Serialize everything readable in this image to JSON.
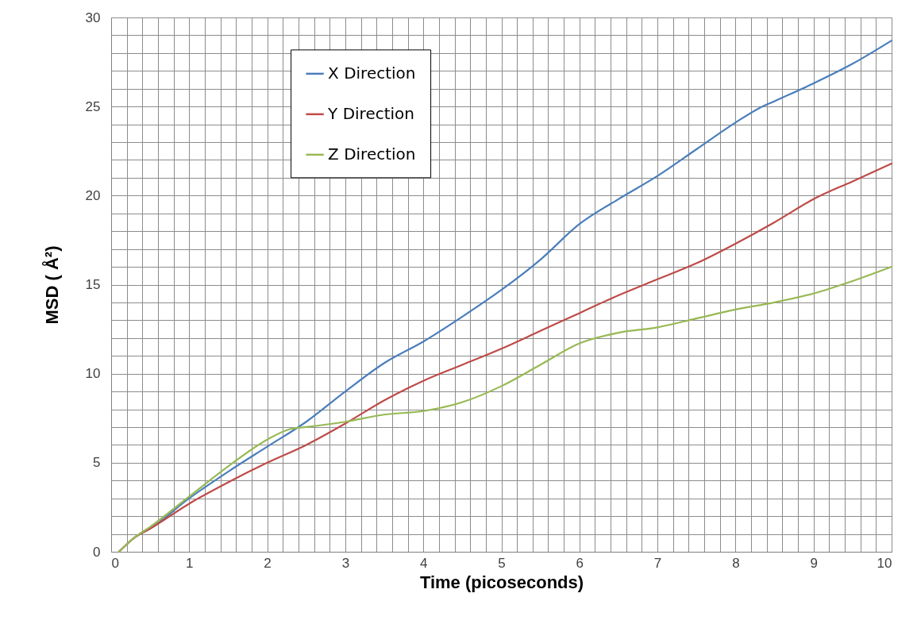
{
  "chart_data": {
    "type": "line",
    "xlabel": "Time (picoseconds)",
    "ylabel": "MSD ( Å²)",
    "xlim": [
      0,
      10
    ],
    "ylim": [
      0,
      30
    ],
    "xticks": [
      0,
      {
        "value": 0.2,
        "label": null
      },
      {
        "value": 0.4,
        "label": null
      },
      {
        "value": 0.6,
        "label": null
      },
      {
        "value": 0.8,
        "label": null
      },
      1,
      {
        "value": 1.2,
        "label": null
      },
      {
        "value": 1.4,
        "label": null
      },
      {
        "value": 1.6,
        "label": null
      },
      {
        "value": 1.8,
        "label": null
      },
      2,
      {
        "value": 2.2,
        "label": null
      },
      {
        "value": 2.4,
        "label": null
      },
      {
        "value": 2.6,
        "label": null
      },
      {
        "value": 2.8,
        "label": null
      },
      3,
      {
        "value": 3.2,
        "label": null
      },
      {
        "value": 3.4,
        "label": null
      },
      {
        "value": 3.6,
        "label": null
      },
      {
        "value": 3.8,
        "label": null
      },
      4,
      {
        "value": 4.2,
        "label": null
      },
      {
        "value": 4.4,
        "label": null
      },
      {
        "value": 4.6,
        "label": null
      },
      {
        "value": 4.8,
        "label": null
      },
      5,
      {
        "value": 5.2,
        "label": null
      },
      {
        "value": 5.4,
        "label": null
      },
      {
        "value": 5.6,
        "label": null
      },
      {
        "value": 5.8,
        "label": null
      },
      6,
      {
        "value": 6.2,
        "label": null
      },
      {
        "value": 6.4,
        "label": null
      },
      {
        "value": 6.6,
        "label": null
      },
      {
        "value": 6.8,
        "label": null
      },
      7,
      {
        "value": 7.2,
        "label": null
      },
      {
        "value": 7.4,
        "label": null
      },
      {
        "value": 7.6,
        "label": null
      },
      {
        "value": 7.8,
        "label": null
      },
      8,
      {
        "value": 8.2,
        "label": null
      },
      {
        "value": 8.4,
        "label": null
      },
      {
        "value": 8.6,
        "label": null
      },
      {
        "value": 8.8,
        "label": null
      },
      9,
      {
        "value": 9.2,
        "label": null
      },
      {
        "value": 9.4,
        "label": null
      },
      {
        "value": 9.6,
        "label": null
      },
      {
        "value": 9.8,
        "label": null
      },
      10
    ],
    "yticks": [
      0,
      {
        "value": 1,
        "label": null
      },
      {
        "value": 2,
        "label": null
      },
      {
        "value": 3,
        "label": null
      },
      {
        "value": 4,
        "label": null
      },
      5,
      {
        "value": 6,
        "label": null
      },
      {
        "value": 7,
        "label": null
      },
      {
        "value": 8,
        "label": null
      },
      {
        "value": 9,
        "label": null
      },
      10,
      {
        "value": 11,
        "label": null
      },
      {
        "value": 12,
        "label": null
      },
      {
        "value": 13,
        "label": null
      },
      {
        "value": 14,
        "label": null
      },
      15,
      {
        "value": 16,
        "label": null
      },
      {
        "value": 17,
        "label": null
      },
      {
        "value": 18,
        "label": null
      },
      {
        "value": 19,
        "label": null
      },
      20,
      {
        "value": 21,
        "label": null
      },
      {
        "value": 22,
        "label": null
      },
      {
        "value": 23,
        "label": null
      },
      {
        "value": 24,
        "label": null
      },
      25,
      {
        "value": 26,
        "label": null
      },
      {
        "value": 27,
        "label": null
      },
      {
        "value": 28,
        "label": null
      },
      {
        "value": 29,
        "label": null
      },
      30
    ],
    "grid": true,
    "legend": "top left",
    "line_style": "solid",
    "series": [
      {
        "name": "X Direction",
        "color": "#4a7ebb",
        "x": [
          0.1,
          0.3,
          0.5,
          1,
          1.5,
          2,
          2.5,
          3,
          3.5,
          4,
          4.5,
          5,
          5.5,
          6,
          6.5,
          7,
          7.5,
          8,
          8.3,
          8.5,
          9,
          9.5,
          10
        ],
        "values": [
          0,
          0.8,
          1.3,
          3.0,
          4.5,
          5.9,
          7.3,
          9.0,
          10.6,
          11.8,
          13.2,
          14.7,
          16.4,
          18.4,
          19.8,
          21.1,
          22.6,
          24.1,
          24.9,
          25.3,
          26.3,
          27.4,
          28.7
        ]
      },
      {
        "name": "Y Direction",
        "color": "#be4b48",
        "x": [
          0.1,
          0.3,
          0.5,
          1,
          1.5,
          2,
          2.5,
          3,
          3.5,
          4,
          4.5,
          5,
          5.5,
          6,
          6.5,
          7,
          7.5,
          8,
          8.5,
          9,
          9.5,
          10
        ],
        "values": [
          0,
          0.8,
          1.3,
          2.7,
          3.9,
          5.0,
          6.0,
          7.2,
          8.5,
          9.6,
          10.5,
          11.4,
          12.4,
          13.4,
          14.4,
          15.3,
          16.2,
          17.3,
          18.5,
          19.8,
          20.8,
          21.8
        ]
      },
      {
        "name": "Z Direction",
        "color": "#98b954",
        "x": [
          0.1,
          0.3,
          0.5,
          1,
          1.5,
          2,
          2.3,
          2.5,
          3,
          3.5,
          4,
          4.5,
          5,
          5.5,
          6,
          6.5,
          7,
          7.5,
          8,
          8.5,
          9,
          9.5,
          10
        ],
        "values": [
          0,
          0.8,
          1.4,
          3.1,
          4.8,
          6.3,
          6.9,
          7.0,
          7.3,
          7.7,
          7.9,
          8.4,
          9.3,
          10.5,
          11.7,
          12.3,
          12.6,
          13.1,
          13.6,
          14.0,
          14.5,
          15.2,
          16.0
        ]
      }
    ]
  }
}
